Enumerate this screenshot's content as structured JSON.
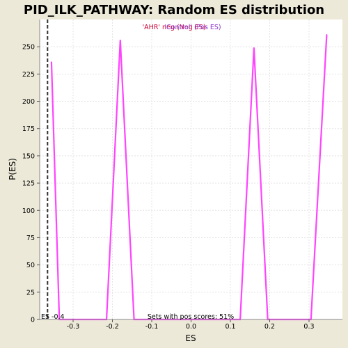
{
  "chart_data": {
    "type": "line",
    "title": "PID_ILK_PATHWAY: Random ES distribution",
    "xlabel": "ES",
    "ylabel": "P(ES)",
    "xlim": [
      -0.385,
      0.385
    ],
    "ylim": [
      0,
      275
    ],
    "x_ticks": [
      -0.3,
      -0.2,
      -0.1,
      0.0,
      0.1,
      0.2,
      0.3
    ],
    "x_tick_labels": [
      "-0.3",
      "-0.2",
      "-0.1",
      "0.0",
      "0.1",
      "0.2",
      "0.3"
    ],
    "y_ticks": [
      0,
      25,
      50,
      75,
      100,
      125,
      150,
      175,
      200,
      225,
      250
    ],
    "y_tick_labels": [
      "0",
      "25",
      "50",
      "75",
      "100",
      "125",
      "150",
      "175",
      "200",
      "225",
      "250"
    ],
    "grid": true,
    "series": [
      {
        "color": "#ff44ff",
        "x": [
          -0.355,
          -0.335,
          -0.215,
          -0.18,
          -0.145,
          0.125,
          0.16,
          0.195,
          0.305,
          0.345
        ],
        "y": [
          236,
          0,
          0,
          256,
          0,
          0,
          249,
          0,
          0,
          261
        ]
      }
    ],
    "es_marker": {
      "x": -0.365,
      "label": "ES -0.4"
    },
    "legend": {
      "overlap_text_1": "'AHR' neg (Neg ES)",
      "overlap_text_2": "'Control' (Pos ES)",
      "color_1": "#cc0033",
      "color_2": "#8833cc"
    },
    "annotation": "Sets with pos scores: 51%"
  }
}
